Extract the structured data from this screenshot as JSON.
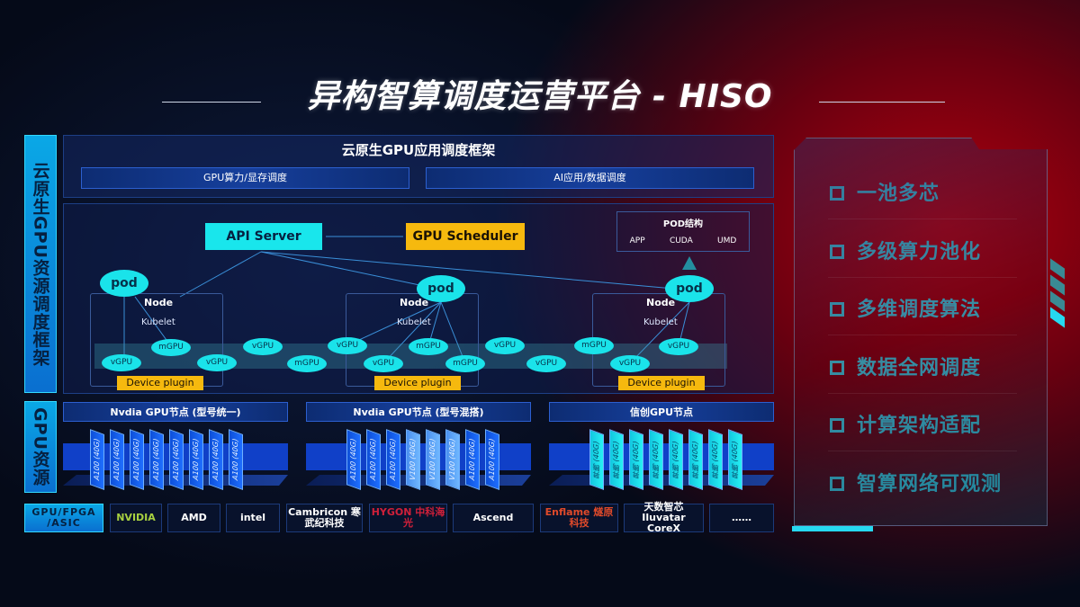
{
  "title": "异构智算调度运营平台 - HISO",
  "left_labels": {
    "framework": "云原生GPU资源调度框架",
    "resources": "GPU资源",
    "chips": "GPU/FPGA /ASIC"
  },
  "framework": {
    "title": "云原生GPU应用调度框架",
    "bars": [
      "GPU算力/显存调度",
      "AI应用/数据调度"
    ]
  },
  "diagram": {
    "api_server": "API Server",
    "gpu_scheduler": "GPU Scheduler",
    "pod_structure": {
      "title": "POD结构",
      "items": [
        "APP",
        "CUDA",
        "UMD"
      ]
    },
    "pod": "pod",
    "node": "Node",
    "kubelet": "Kubelet",
    "device_plugin": "Device plugin",
    "units": [
      "vGPU",
      "mGPU",
      "vGPU",
      "vGPU",
      "mGPU",
      "vGPU",
      "vGPU",
      "mGPU",
      "mGPU",
      "vGPU",
      "vGPU",
      "mGPU",
      "vGPU",
      "vGPU"
    ]
  },
  "gpu_nodes": [
    {
      "title": "Nvdia GPU节点 (型号统一)",
      "cards": [
        "A100 (40G)",
        "A100 (40G)",
        "A100 (40G)",
        "A100 (40G)",
        "A100 (40G)",
        "A100 (40G)",
        "A100 (40G)",
        "A100 (40G)"
      ]
    },
    {
      "title": "Nvdia GPU节点 (型号混搭)",
      "cards": [
        "A100 (40G)",
        "A100 (40G)",
        "A100 (40G)",
        "V100 (40G)",
        "V100 (40G)",
        "V100 (40G)",
        "A100 (40G)",
        "A100 (40G)"
      ]
    },
    {
      "title": "信创GPU节点",
      "cards": [
        "昇腾 (40G)",
        "昇腾 (40G)",
        "昇腾 (40G)",
        "昇腾 (40G)",
        "昇腾 (40G)",
        "昇腾 (40G)",
        "昇腾 (40G)",
        "昇腾 (40G)"
      ]
    }
  ],
  "vendors": [
    "NVIDIA",
    "AMD",
    "intel",
    "Cambricon 寒武纪科技",
    "HYGON 中科海光",
    "Ascend",
    "Enflame 燧原科技",
    "天数智芯 Iluvatar CoreX",
    "……"
  ],
  "features": [
    "一池多芯",
    "多级算力池化",
    "多维调度算法",
    "数据全网调度",
    "计算架构适配",
    "智算网络可观测"
  ],
  "colors": {
    "cyan": "#1ae3ea",
    "orange": "#f6b90e",
    "blue": "#1040c8",
    "red": "#b0000e"
  }
}
